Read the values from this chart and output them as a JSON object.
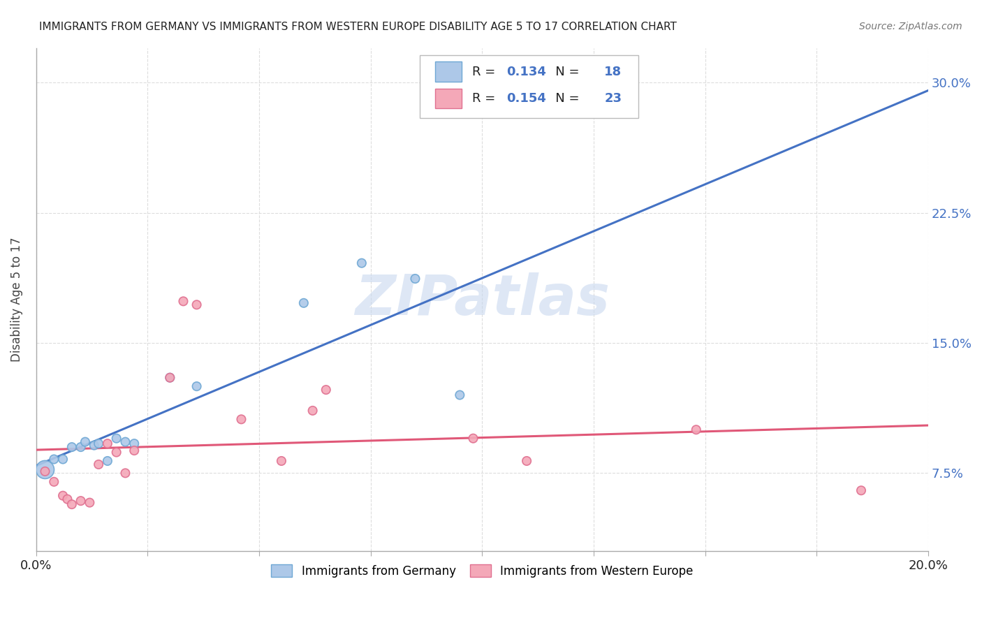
{
  "title": "IMMIGRANTS FROM GERMANY VS IMMIGRANTS FROM WESTERN EUROPE DISABILITY AGE 5 TO 17 CORRELATION CHART",
  "source": "Source: ZipAtlas.com",
  "ylabel": "Disability Age 5 to 17",
  "xlim": [
    0.0,
    0.2
  ],
  "ylim": [
    0.03,
    0.32
  ],
  "yticks": [
    0.075,
    0.15,
    0.225,
    0.3
  ],
  "ytick_labels": [
    "7.5%",
    "15.0%",
    "22.5%",
    "30.0%"
  ],
  "xticks": [
    0.0,
    0.025,
    0.05,
    0.075,
    0.1,
    0.125,
    0.15,
    0.175,
    0.2
  ],
  "germany_x": [
    0.002,
    0.004,
    0.006,
    0.008,
    0.01,
    0.011,
    0.013,
    0.014,
    0.016,
    0.018,
    0.02,
    0.022,
    0.03,
    0.036,
    0.06,
    0.073,
    0.085,
    0.095
  ],
  "germany_y": [
    0.077,
    0.083,
    0.083,
    0.09,
    0.09,
    0.093,
    0.091,
    0.092,
    0.082,
    0.095,
    0.093,
    0.092,
    0.13,
    0.125,
    0.173,
    0.196,
    0.187,
    0.12
  ],
  "germany_sizes": [
    350,
    80,
    80,
    80,
    80,
    80,
    80,
    80,
    80,
    80,
    80,
    80,
    80,
    80,
    80,
    80,
    80,
    80
  ],
  "western_europe_x": [
    0.002,
    0.004,
    0.006,
    0.007,
    0.008,
    0.01,
    0.012,
    0.014,
    0.016,
    0.018,
    0.02,
    0.022,
    0.03,
    0.033,
    0.036,
    0.046,
    0.055,
    0.062,
    0.065,
    0.098,
    0.11,
    0.148,
    0.185
  ],
  "western_europe_y": [
    0.076,
    0.07,
    0.062,
    0.06,
    0.057,
    0.059,
    0.058,
    0.08,
    0.092,
    0.087,
    0.075,
    0.088,
    0.13,
    0.174,
    0.172,
    0.106,
    0.082,
    0.111,
    0.123,
    0.095,
    0.082,
    0.1,
    0.065
  ],
  "western_europe_sizes": [
    80,
    80,
    80,
    80,
    80,
    80,
    80,
    80,
    80,
    80,
    80,
    80,
    80,
    80,
    80,
    80,
    80,
    80,
    80,
    80,
    80,
    80,
    80
  ],
  "germany_color": "#adc8e8",
  "western_europe_color": "#f4a8b8",
  "germany_edge_color": "#6fa8d4",
  "western_europe_edge_color": "#e07090",
  "germany_R": 0.134,
  "germany_N": 18,
  "western_europe_R": 0.154,
  "western_europe_N": 23,
  "blue_color": "#4472c4",
  "pink_color": "#e05070",
  "trend_blue": "#4472c4",
  "trend_pink": "#e05878",
  "watermark_text": "ZIPatlas",
  "watermark_color": "#c8d8ef"
}
